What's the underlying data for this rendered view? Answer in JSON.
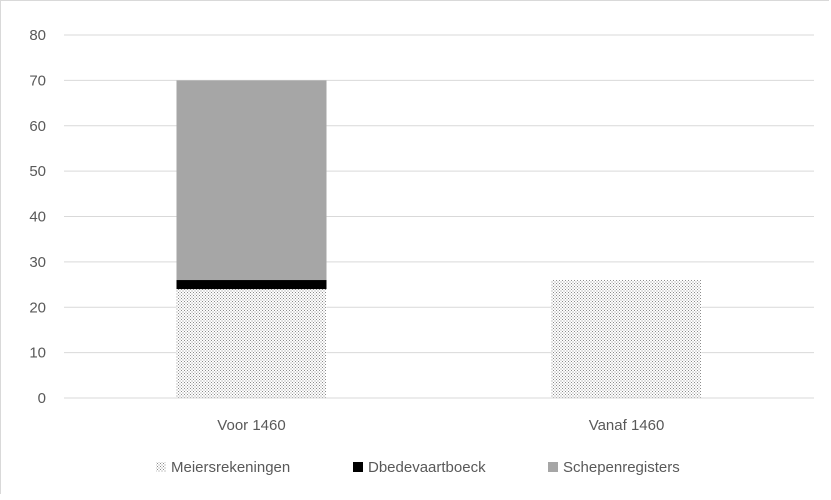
{
  "chart_data": {
    "type": "bar",
    "stacked": true,
    "categories": [
      "Voor 1460",
      "Vanaf 1460"
    ],
    "series": [
      {
        "name": "Meiersrekeningen",
        "values": [
          24,
          26
        ],
        "pattern": "dotted"
      },
      {
        "name": "Dbedevaartboeck",
        "values": [
          2,
          0
        ],
        "color": "#000000"
      },
      {
        "name": "Schepenregisters",
        "values": [
          44,
          0
        ],
        "color": "#a6a6a6"
      }
    ],
    "yticks": [
      "0",
      "10",
      "20",
      "30",
      "40",
      "50",
      "60",
      "70",
      "80"
    ],
    "ylim": [
      0,
      80
    ],
    "grid": true,
    "legend": "bottom",
    "colors": {
      "grid": "#d9d9d9",
      "text": "#595959",
      "dots": "#8c8c8c"
    }
  }
}
